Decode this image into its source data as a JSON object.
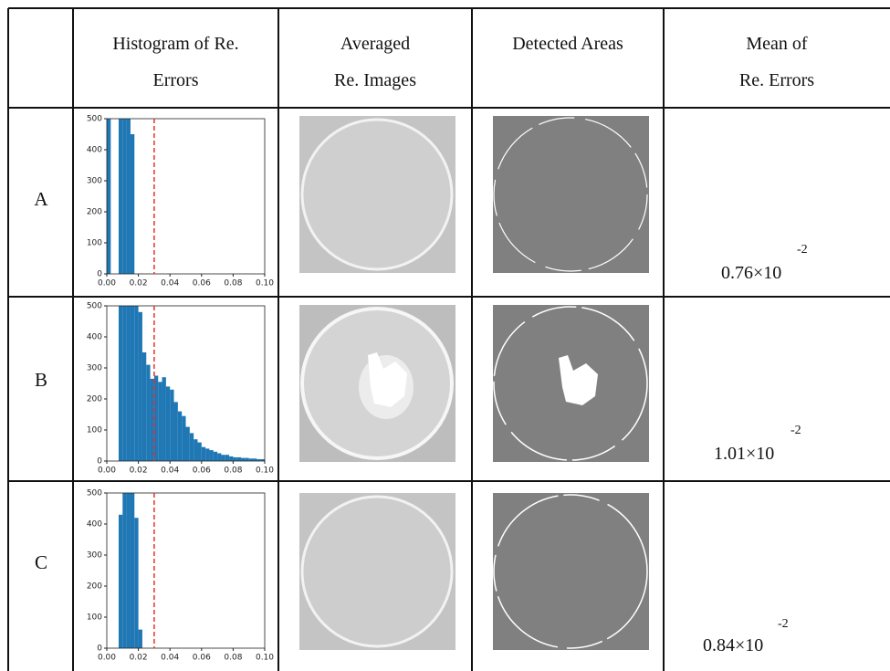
{
  "table": {
    "headers": [
      "Histogram of Re.\nErrors",
      "Averaged\nRe. Images",
      "Detected Areas",
      "Mean of\nRe. Errors"
    ],
    "histogram_axes": {
      "xlim": [
        0,
        0.1
      ],
      "ylim": [
        0,
        500
      ],
      "xticks": [
        {
          "value": 0,
          "label": "0.00"
        },
        0.02,
        0.04,
        0.06,
        0.08,
        {
          "value": 0.1,
          "label": "0.10"
        }
      ],
      "yticks": [
        0,
        100,
        200,
        300,
        400,
        500
      ],
      "color": "#1f77b4",
      "threshold": 0.03,
      "threshold_color": "#e8302a"
    },
    "rows": [
      {
        "label": "A",
        "mean": "0.76×10",
        "exponent": "-2",
        "histogram": {
          "type": "histogram",
          "bins": [
            0,
            0.0025,
            0.005,
            0.0075,
            0.01,
            0.0125,
            0.015,
            0.0175
          ],
          "values": [
            500,
            0,
            0,
            500,
            500,
            500,
            450
          ]
        }
      },
      {
        "label": "B",
        "mean": "1.01×10",
        "exponent": "-2",
        "histogram": {
          "type": "histogram",
          "bins": [
            0.0075,
            0.01,
            0.0125,
            0.015,
            0.0175,
            0.02,
            0.0225,
            0.025,
            0.0275,
            0.03,
            0.0325,
            0.035,
            0.0375,
            0.04,
            0.0425,
            0.045,
            0.0475,
            0.05,
            0.0525,
            0.055,
            0.0575,
            0.06,
            0.0625,
            0.065,
            0.0675,
            0.07,
            0.0725,
            0.075,
            0.0775,
            0.08,
            0.0825,
            0.085,
            0.0875,
            0.09,
            0.0925,
            0.095,
            0.0975,
            0.1
          ],
          "values": [
            500,
            500,
            500,
            500,
            500,
            480,
            350,
            310,
            265,
            275,
            255,
            270,
            240,
            230,
            190,
            160,
            145,
            110,
            90,
            70,
            60,
            45,
            40,
            35,
            30,
            25,
            20,
            20,
            15,
            12,
            12,
            10,
            10,
            8,
            8,
            6,
            6
          ]
        }
      },
      {
        "label": "C",
        "mean": "0.84×10",
        "exponent": "-2",
        "histogram": {
          "type": "histogram",
          "bins": [
            0.0075,
            0.01,
            0.0125,
            0.015,
            0.0175,
            0.02,
            0.0225
          ],
          "values": [
            430,
            500,
            500,
            500,
            420,
            60
          ]
        }
      }
    ]
  }
}
